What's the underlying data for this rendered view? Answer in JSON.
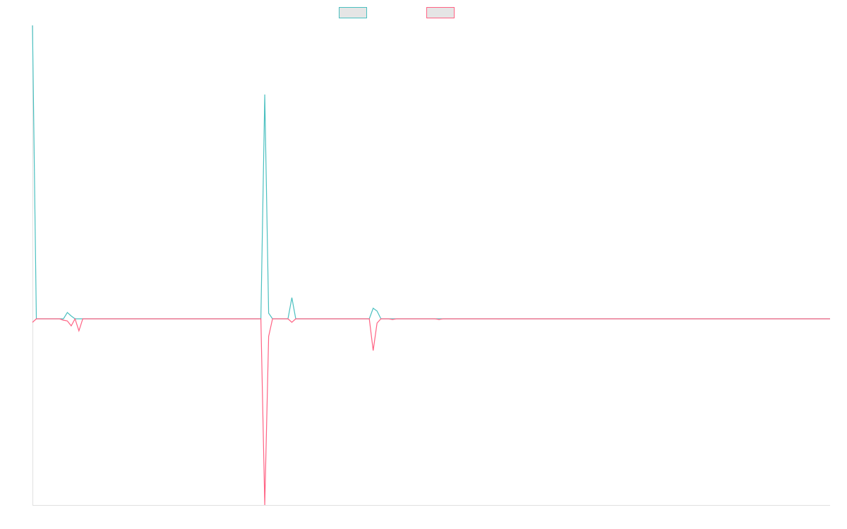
{
  "chart_data": {
    "type": "line",
    "title": "",
    "xlabel": "",
    "ylabel": "",
    "x_count": 207,
    "xlim": [
      0,
      206
    ],
    "ylim": [
      -264,
      416
    ],
    "grid": false,
    "legend_placement": "top-center",
    "series": [
      {
        "color": "#4bc0c0",
        "default": 0,
        "points": [
          [
            0,
            416
          ],
          [
            1,
            0
          ],
          [
            8,
            0
          ],
          [
            9,
            9
          ],
          [
            10,
            4
          ],
          [
            11,
            0
          ],
          [
            59,
            0
          ],
          [
            60,
            318
          ],
          [
            61,
            8
          ],
          [
            62,
            0
          ],
          [
            66,
            0
          ],
          [
            67,
            30
          ],
          [
            68,
            0
          ],
          [
            87,
            0
          ],
          [
            88,
            15
          ],
          [
            89,
            11
          ],
          [
            90,
            0
          ]
        ]
      },
      {
        "color": "#ff6384",
        "default": 0,
        "points": [
          [
            0,
            -5
          ],
          [
            1,
            0
          ],
          [
            8,
            -2
          ],
          [
            9,
            -3
          ],
          [
            10,
            -10
          ],
          [
            11,
            0
          ],
          [
            12,
            -17
          ],
          [
            13,
            0
          ],
          [
            59,
            0
          ],
          [
            60,
            -264
          ],
          [
            61,
            -25
          ],
          [
            62,
            0
          ],
          [
            66,
            0
          ],
          [
            67,
            -5
          ],
          [
            68,
            0
          ],
          [
            87,
            0
          ],
          [
            88,
            -45
          ],
          [
            89,
            -6
          ],
          [
            90,
            0
          ],
          [
            93,
            -1
          ],
          [
            105,
            -1
          ]
        ]
      }
    ]
  }
}
